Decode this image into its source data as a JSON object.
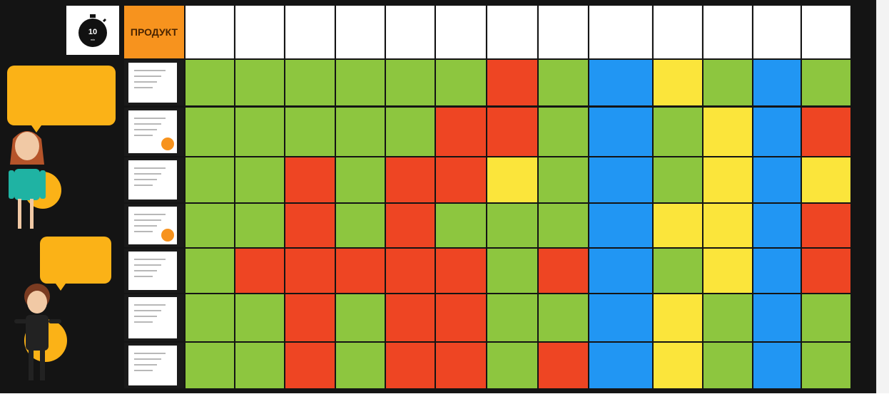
{
  "header": {
    "product_label": "ПРОДУКТ",
    "logo_text": "10"
  },
  "columns": [
    "",
    "",
    "",
    "",
    "",
    "",
    "",
    "",
    "",
    "",
    "",
    "",
    "",
    ""
  ],
  "rows": [
    [
      "g",
      "g",
      "g",
      "g",
      "g",
      "g",
      "r",
      "g",
      "b",
      "y",
      "g",
      "b",
      "g"
    ],
    [
      "g",
      "g",
      "g",
      "g",
      "g",
      "r",
      "r",
      "g",
      "b",
      "g",
      "y",
      "b",
      "r"
    ],
    [
      "g",
      "g",
      "r",
      "g",
      "r",
      "r",
      "y",
      "g",
      "b",
      "g",
      "y",
      "b",
      "y"
    ],
    [
      "g",
      "g",
      "r",
      "g",
      "r",
      "g",
      "g",
      "g",
      "b",
      "y",
      "y",
      "b",
      "r"
    ],
    [
      "g",
      "r",
      "r",
      "r",
      "r",
      "r",
      "g",
      "r",
      "b",
      "g",
      "y",
      "b",
      "r"
    ],
    [
      "g",
      "g",
      "r",
      "g",
      "r",
      "r",
      "g",
      "g",
      "b",
      "y",
      "g",
      "b",
      "g"
    ],
    [
      "g",
      "g",
      "r",
      "g",
      "r",
      "r",
      "g",
      "r",
      "b",
      "y",
      "g",
      "b",
      "g"
    ]
  ],
  "colors": {
    "green": "#8dc63f",
    "red": "#ee4523",
    "yellow": "#fbe53b",
    "blue": "#2196f3",
    "orange": "#f7931e"
  },
  "bubbles": [
    "",
    ""
  ]
}
